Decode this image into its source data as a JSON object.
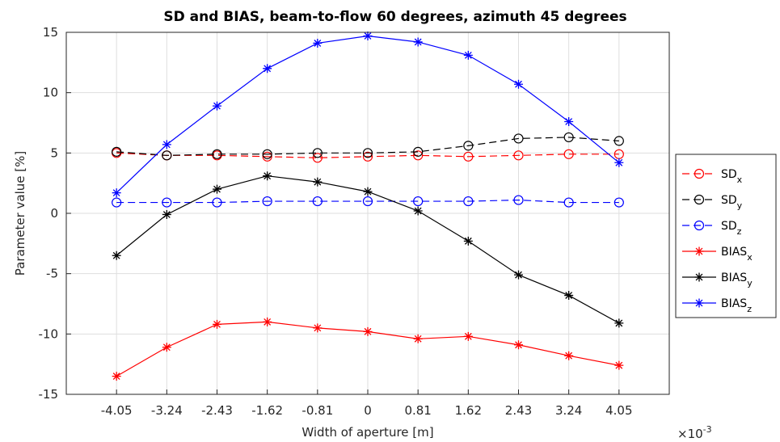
{
  "chart_data": {
    "type": "line",
    "title": "SD and BIAS, beam-to-flow 60 degrees, azimuth 45 degrees",
    "xlabel": "Width of aperture [m]",
    "ylabel": "Parameter value [%]",
    "x_exponent_label": "×10",
    "x_exponent_power": "-3",
    "x": [
      -4.05,
      -3.24,
      -2.43,
      -1.62,
      -0.81,
      0,
      0.81,
      1.62,
      2.43,
      3.24,
      4.05
    ],
    "x_ticklabels": [
      "-4.05",
      "-3.24",
      "-2.43",
      "-1.62",
      "-0.81",
      "0",
      "0.81",
      "1.62",
      "2.43",
      "3.24",
      "4.05"
    ],
    "xlim": [
      -4.86,
      4.86
    ],
    "ylim": [
      -15,
      15
    ],
    "y_ticks": [
      -15,
      -10,
      -5,
      0,
      5,
      10,
      15
    ],
    "grid": true,
    "legend_position": "right",
    "series": [
      {
        "name": "SD",
        "sub": "x",
        "color": "#ff0000",
        "dash": true,
        "marker": "circle",
        "values": [
          5.0,
          4.8,
          4.8,
          4.7,
          4.6,
          4.7,
          4.8,
          4.7,
          4.8,
          4.9,
          4.9
        ]
      },
      {
        "name": "SD",
        "sub": "y",
        "color": "#000000",
        "dash": true,
        "marker": "circle",
        "values": [
          5.1,
          4.8,
          4.9,
          4.9,
          5.0,
          5.0,
          5.1,
          5.6,
          6.2,
          6.3,
          6.0
        ]
      },
      {
        "name": "SD",
        "sub": "z",
        "color": "#0000ff",
        "dash": true,
        "marker": "circle",
        "values": [
          0.9,
          0.9,
          0.9,
          1.0,
          1.0,
          1.0,
          1.0,
          1.0,
          1.1,
          0.9,
          0.9
        ]
      },
      {
        "name": "BIAS",
        "sub": "x",
        "color": "#ff0000",
        "dash": false,
        "marker": "star",
        "values": [
          -13.5,
          -11.1,
          -9.2,
          -9.0,
          -9.5,
          -9.8,
          -10.4,
          -10.2,
          -10.9,
          -11.8,
          -12.6
        ]
      },
      {
        "name": "BIAS",
        "sub": "y",
        "color": "#000000",
        "dash": false,
        "marker": "star",
        "values": [
          -3.5,
          -0.1,
          2.0,
          3.1,
          2.6,
          1.8,
          0.2,
          -2.3,
          -5.1,
          -6.8,
          -9.1
        ]
      },
      {
        "name": "BIAS",
        "sub": "z",
        "color": "#0000ff",
        "dash": false,
        "marker": "star",
        "values": [
          1.7,
          5.7,
          8.9,
          12.0,
          14.1,
          14.7,
          14.2,
          13.1,
          10.7,
          7.6,
          4.2
        ]
      }
    ]
  }
}
